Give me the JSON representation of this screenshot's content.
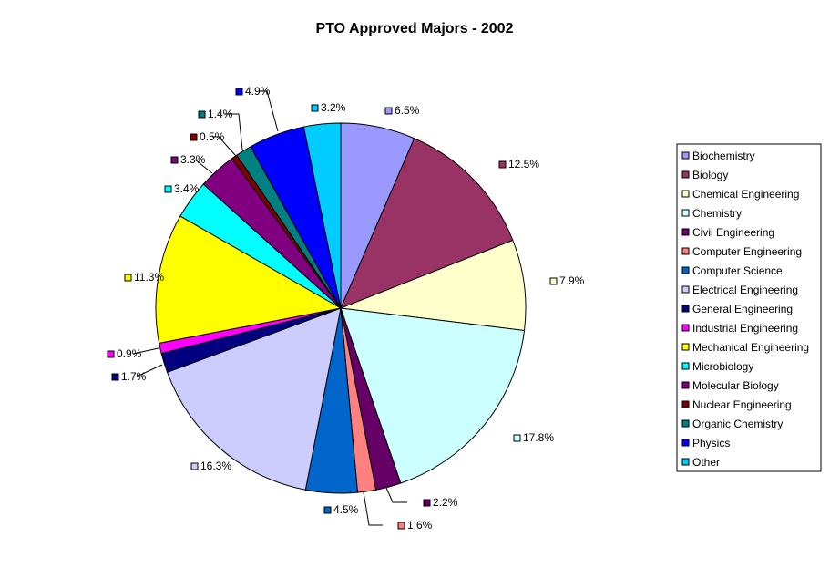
{
  "chart_data": {
    "type": "pie",
    "title": "PTO Approved Majors - 2002",
    "start_angle_deg": 0,
    "direction": "clockwise",
    "legend_position": "right",
    "slices": [
      {
        "name": "Biochemistry",
        "value": 6.5,
        "label": "6.5%",
        "color": "#9999ff"
      },
      {
        "name": "Biology",
        "value": 12.5,
        "label": "12.5%",
        "color": "#993366"
      },
      {
        "name": "Chemical Engineering",
        "value": 7.9,
        "label": "7.9%",
        "color": "#ffffcc"
      },
      {
        "name": "Chemistry",
        "value": 17.8,
        "label": "17.8%",
        "color": "#ccffff"
      },
      {
        "name": "Civil Engineering",
        "value": 2.2,
        "label": "2.2%",
        "color": "#660066"
      },
      {
        "name": "Computer Engineering",
        "value": 1.6,
        "label": "1.6%",
        "color": "#ff8080"
      },
      {
        "name": "Computer Science",
        "value": 4.5,
        "label": "4.5%",
        "color": "#0066cc"
      },
      {
        "name": "Electrical Engineering",
        "value": 16.3,
        "label": "16.3%",
        "color": "#ccccff"
      },
      {
        "name": "General Engineering",
        "value": 1.7,
        "label": "1.7%",
        "color": "#000080"
      },
      {
        "name": "Industrial Engineering",
        "value": 0.9,
        "label": "0.9%",
        "color": "#ff00ff"
      },
      {
        "name": "Mechanical Engineering",
        "value": 11.3,
        "label": "11.3%",
        "color": "#ffff00"
      },
      {
        "name": "Microbiology",
        "value": 3.4,
        "label": "3.4%",
        "color": "#00ffff"
      },
      {
        "name": "Molecular Biology",
        "value": 3.3,
        "label": "3.3%",
        "color": "#800080"
      },
      {
        "name": "Nuclear Engineering",
        "value": 0.5,
        "label": "0.5%",
        "color": "#800000"
      },
      {
        "name": "Organic Chemistry",
        "value": 1.4,
        "label": "1.4%",
        "color": "#008080"
      },
      {
        "name": "Physics",
        "value": 4.9,
        "label": "4.9%",
        "color": "#0000ff"
      },
      {
        "name": "Other",
        "value": 3.2,
        "label": "3.2%",
        "color": "#00ccff"
      }
    ]
  }
}
